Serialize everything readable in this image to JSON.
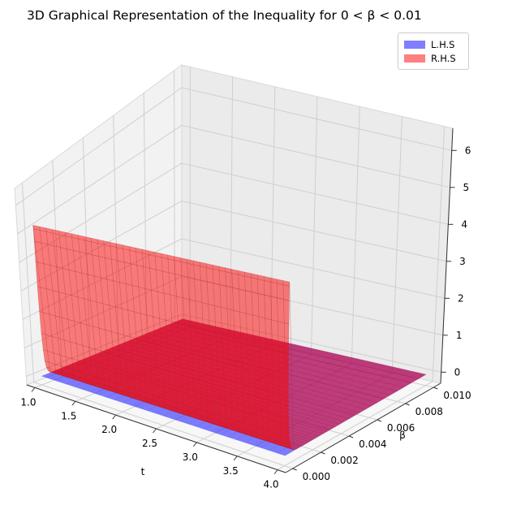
{
  "chart_data": {
    "type": "surface3d",
    "title": "3D Graphical Representation of the Inequality for 0 < β < 0.01",
    "xlabel": "t",
    "ylabel": "β",
    "zlabel": "",
    "xlim": [
      0.9,
      4.1
    ],
    "ylim": [
      -0.0005,
      0.0105
    ],
    "zlim": [
      -0.3,
      6.6
    ],
    "xticks": [
      "1.0",
      "1.5",
      "2.0",
      "2.5",
      "3.0",
      "3.5",
      "4.0"
    ],
    "yticks": [
      "0.000",
      "0.002",
      "0.004",
      "0.006",
      "0.008",
      "0.010"
    ],
    "zticks": [
      "0",
      "1",
      "2",
      "3",
      "4",
      "5",
      "6"
    ],
    "grid": true,
    "legend_position": "top-right",
    "series": [
      {
        "name": "L.H.S",
        "color": "#0000ff",
        "alpha": 0.5,
        "t_range": [
          1.0,
          4.0
        ],
        "beta_range": [
          0.0,
          0.01
        ],
        "z_at_t": [
          [
            1.0,
            0.0
          ],
          [
            4.0,
            0.0
          ]
        ]
      },
      {
        "name": "R.H.S",
        "color": "#ff0000",
        "alpha": 0.5,
        "t_range": [
          1.0,
          4.0
        ],
        "beta_range": [
          0.0,
          0.01
        ],
        "z_at_beta0": 5.2,
        "z_elsewhere": 0.0
      }
    ]
  }
}
